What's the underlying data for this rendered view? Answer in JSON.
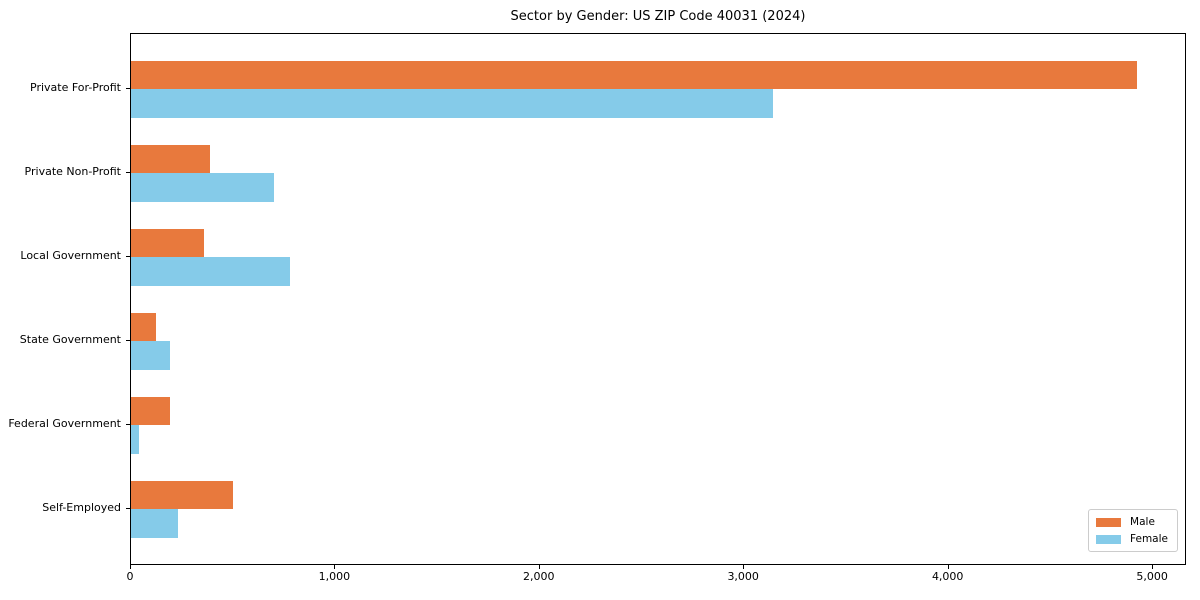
{
  "figure": {
    "title": "Sector by Gender: US ZIP Code 40031 (2024)"
  },
  "chart_data": {
    "type": "bar",
    "orientation": "horizontal",
    "title": "Sector by Gender: US ZIP Code 40031 (2024)",
    "categories": [
      "Private For-Profit",
      "Private Non-Profit",
      "Local Government",
      "State Government",
      "Federal Government",
      "Self-Employed"
    ],
    "series": [
      {
        "name": "Male",
        "color": "#E8793D",
        "values": [
          4920,
          385,
          355,
          120,
          190,
          500
        ]
      },
      {
        "name": "Female",
        "color": "#85CBE9",
        "values": [
          3140,
          700,
          780,
          190,
          40,
          230
        ]
      }
    ],
    "xlabel": "",
    "ylabel": "",
    "xlim": [
      0,
      5166
    ],
    "xticks": [
      0,
      1000,
      2000,
      3000,
      4000,
      5000
    ],
    "xtick_labels": [
      "0",
      "1,000",
      "2,000",
      "3,000",
      "4,000",
      "5,000"
    ],
    "grid": false,
    "legend": {
      "position": "lower right",
      "entries": [
        "Male",
        "Female"
      ]
    }
  }
}
